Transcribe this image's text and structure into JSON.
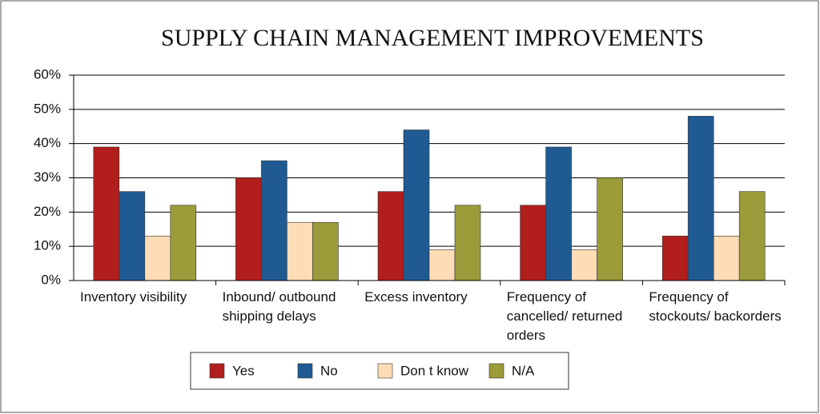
{
  "chart_data": {
    "type": "bar",
    "title": "SUPPLY CHAIN MANAGEMENT IMPROVEMENTS",
    "categories": [
      "Inventory visibility",
      "Inbound/ outbound shipping delays",
      "Excess inventory",
      "Frequency of cancelled/ returned orders",
      "Frequency of stockouts/ backorders"
    ],
    "series": [
      {
        "name": "Yes",
        "color": "#b21e1c",
        "values": [
          39,
          30,
          26,
          22,
          13
        ]
      },
      {
        "name": "No",
        "color": "#1f5a92",
        "values": [
          26,
          35,
          44,
          39,
          48
        ]
      },
      {
        "name": "Don t know",
        "color": "#fddcb6",
        "values": [
          13,
          17,
          9,
          9,
          13
        ]
      },
      {
        "name": "N/A",
        "color": "#9b9b3a",
        "values": [
          22,
          17,
          22,
          30,
          26
        ]
      }
    ],
    "ylim": [
      0,
      60
    ],
    "yticks": [
      {
        "value": 0,
        "label": "0%"
      },
      {
        "value": 10,
        "label": "10%"
      },
      {
        "value": 20,
        "label": "20%"
      },
      {
        "value": 30,
        "label": "30%"
      },
      {
        "value": 40,
        "label": "40%"
      },
      {
        "value": 50,
        "label": "50%"
      },
      {
        "value": 60,
        "label": "60%"
      }
    ],
    "grid": true,
    "legend": "bottom"
  }
}
